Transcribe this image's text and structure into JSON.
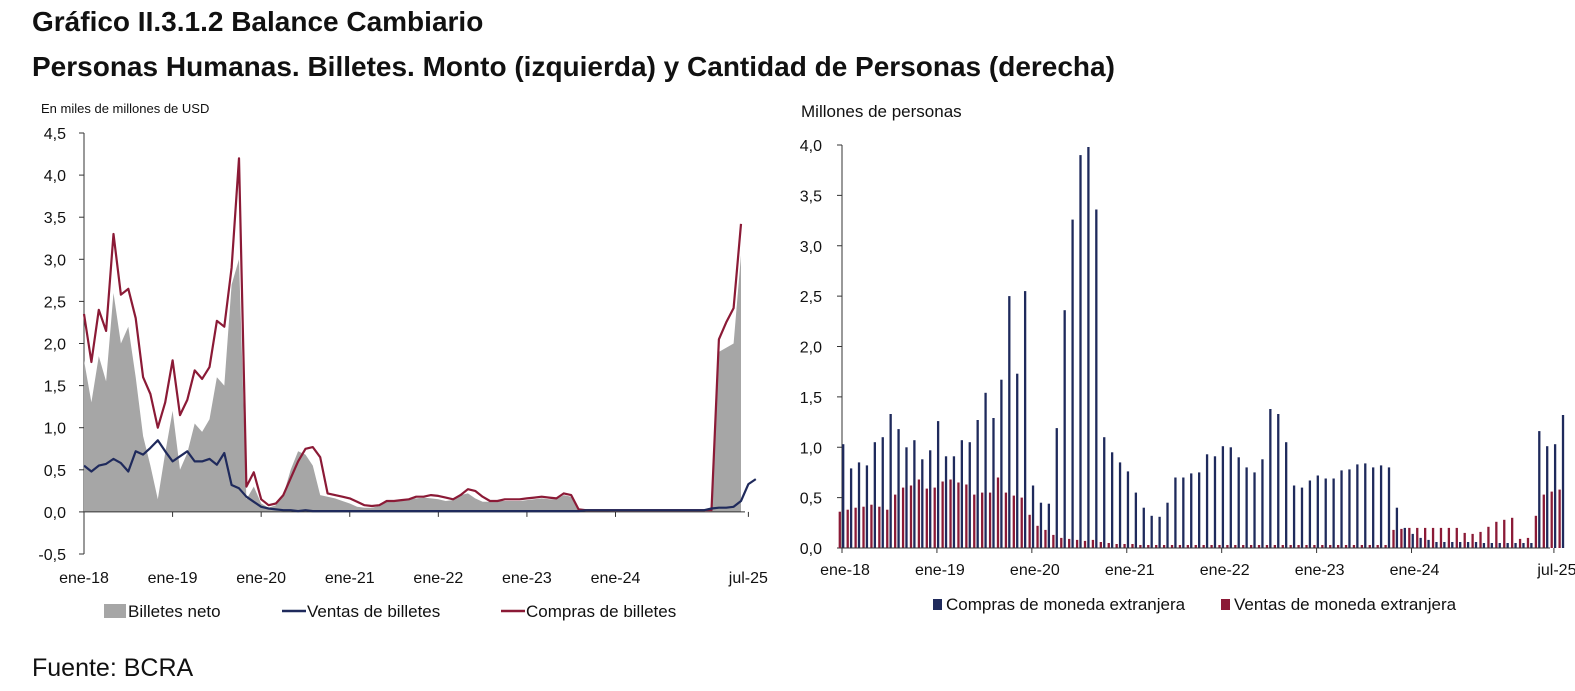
{
  "header": {
    "title": "Gráfico II.3.1.2 Balance Cambiario",
    "subtitle": "Personas Humanas. Billetes. Monto (izquierda) y Cantidad de Personas (derecha)"
  },
  "source": "Fuente: BCRA",
  "colors": {
    "neto": "#a6a6a6",
    "ventas_billetes": "#1f2a5c",
    "compras_billetes": "#8b1a36",
    "compras_moneda": "#1f2a5c",
    "ventas_moneda": "#8b1a36"
  },
  "chart_data": [
    {
      "type": "area",
      "unit_label": "En miles de millones de USD",
      "ylim": [
        -0.5,
        4.5
      ],
      "yticks": [
        "-0,5",
        "0,0",
        "0,5",
        "1,0",
        "1,5",
        "2,0",
        "2,5",
        "3,0",
        "3,5",
        "4,0",
        "4,5"
      ],
      "xtick_labels": [
        "ene-18",
        "ene-19",
        "ene-20",
        "ene-21",
        "ene-22",
        "ene-23",
        "ene-24",
        "jul-25"
      ],
      "xtick_index": [
        0,
        12,
        24,
        36,
        48,
        60,
        72,
        90
      ],
      "series": [
        {
          "name": "Billetes neto",
          "kind": "area",
          "values": [
            1.8,
            1.3,
            1.85,
            1.55,
            2.6,
            2.0,
            2.2,
            1.6,
            0.9,
            0.55,
            0.15,
            0.7,
            1.2,
            0.5,
            0.7,
            1.05,
            0.95,
            1.1,
            1.6,
            1.5,
            2.7,
            3.0,
            0.15,
            0.3,
            0.1,
            0.05,
            0.08,
            0.2,
            0.5,
            0.72,
            0.68,
            0.55,
            0.2,
            0.18,
            0.16,
            0.13,
            0.1,
            0.06,
            0.05,
            0.05,
            0.07,
            0.12,
            0.12,
            0.13,
            0.15,
            0.16,
            0.17,
            0.16,
            0.15,
            0.13,
            0.14,
            0.2,
            0.22,
            0.16,
            0.12,
            0.12,
            0.13,
            0.13,
            0.13,
            0.13,
            0.14,
            0.15,
            0.16,
            0.15,
            0.15,
            0.2,
            0.18,
            0.02,
            0.01,
            0.01,
            0.01,
            0.01,
            0.0,
            0.0,
            0.0,
            0.0,
            0.0,
            0.0,
            0.0,
            0.0,
            0.0,
            0.0,
            0.0,
            0.0,
            0.0,
            0.0,
            1.9,
            1.95,
            2.0,
            3.05
          ]
        },
        {
          "name": "Ventas de billetes",
          "kind": "line",
          "values": [
            0.55,
            0.48,
            0.55,
            0.57,
            0.63,
            0.58,
            0.48,
            0.72,
            0.68,
            0.76,
            0.85,
            0.72,
            0.6,
            0.66,
            0.72,
            0.6,
            0.6,
            0.63,
            0.56,
            0.7,
            0.32,
            0.28,
            0.18,
            0.12,
            0.06,
            0.04,
            0.03,
            0.02,
            0.02,
            0.01,
            0.02,
            0.01,
            0.01,
            0.01,
            0.01,
            0.01,
            0.01,
            0.01,
            0.01,
            0.01,
            0.01,
            0.01,
            0.01,
            0.01,
            0.01,
            0.01,
            0.01,
            0.01,
            0.01,
            0.01,
            0.01,
            0.01,
            0.01,
            0.01,
            0.01,
            0.01,
            0.01,
            0.01,
            0.01,
            0.01,
            0.01,
            0.01,
            0.01,
            0.01,
            0.01,
            0.01,
            0.01,
            0.01,
            0.02,
            0.02,
            0.02,
            0.02,
            0.02,
            0.02,
            0.02,
            0.02,
            0.02,
            0.02,
            0.02,
            0.02,
            0.02,
            0.02,
            0.02,
            0.02,
            0.02,
            0.04,
            0.05,
            0.05,
            0.06,
            0.13,
            0.33,
            0.39
          ]
        },
        {
          "name": "Compras de billetes",
          "kind": "line",
          "values": [
            2.35,
            1.78,
            2.4,
            2.15,
            3.3,
            2.58,
            2.65,
            2.3,
            1.6,
            1.4,
            1.0,
            1.3,
            1.8,
            1.15,
            1.33,
            1.68,
            1.58,
            1.72,
            2.27,
            2.2,
            2.9,
            4.2,
            0.3,
            0.47,
            0.15,
            0.08,
            0.1,
            0.2,
            0.4,
            0.6,
            0.75,
            0.77,
            0.65,
            0.22,
            0.2,
            0.18,
            0.16,
            0.12,
            0.08,
            0.07,
            0.08,
            0.13,
            0.13,
            0.14,
            0.15,
            0.18,
            0.18,
            0.2,
            0.19,
            0.17,
            0.15,
            0.2,
            0.27,
            0.25,
            0.18,
            0.13,
            0.13,
            0.15,
            0.15,
            0.15,
            0.16,
            0.17,
            0.18,
            0.17,
            0.16,
            0.22,
            0.2,
            0.03,
            0.02,
            0.02,
            0.02,
            0.02,
            0.02,
            0.02,
            0.02,
            0.02,
            0.02,
            0.02,
            0.02,
            0.02,
            0.02,
            0.02,
            0.02,
            0.02,
            0.02,
            0.02,
            2.05,
            2.25,
            2.42,
            3.42
          ]
        }
      ],
      "legend_position": "bottom"
    },
    {
      "type": "bar",
      "unit_label": "Millones de personas",
      "ylim": [
        0,
        4.0
      ],
      "yticks": [
        "0,0",
        "0,5",
        "1,0",
        "1,5",
        "2,0",
        "2,5",
        "3,0",
        "3,5",
        "4,0"
      ],
      "xtick_labels": [
        "ene-18",
        "ene-19",
        "ene-20",
        "ene-21",
        "ene-22",
        "ene-23",
        "ene-24",
        "jul-25"
      ],
      "xtick_index": [
        0,
        12,
        24,
        36,
        48,
        60,
        72,
        90
      ],
      "series": [
        {
          "name": "Compras de moneda extranjera",
          "values": [
            1.03,
            0.79,
            0.85,
            0.82,
            1.05,
            1.1,
            1.33,
            1.18,
            1.0,
            1.07,
            0.88,
            0.97,
            1.26,
            0.91,
            0.91,
            1.07,
            1.05,
            1.27,
            1.54,
            1.29,
            1.67,
            2.5,
            1.73,
            2.55,
            0.62,
            0.45,
            0.44,
            1.19,
            2.36,
            3.26,
            3.9,
            3.98,
            3.36,
            1.1,
            0.95,
            0.85,
            0.76,
            0.55,
            0.4,
            0.32,
            0.31,
            0.45,
            0.7,
            0.7,
            0.74,
            0.75,
            0.93,
            0.91,
            1.01,
            1.0,
            0.9,
            0.8,
            0.75,
            0.88,
            1.38,
            1.33,
            1.05,
            0.62,
            0.6,
            0.67,
            0.72,
            0.69,
            0.69,
            0.77,
            0.78,
            0.83,
            0.84,
            0.8,
            0.82,
            0.8,
            0.4,
            0.2,
            0.14,
            0.1,
            0.08,
            0.06,
            0.06,
            0.06,
            0.06,
            0.06,
            0.06,
            0.05,
            0.05,
            0.05,
            0.05,
            0.05,
            0.05,
            0.05,
            1.16,
            1.01,
            1.03,
            1.32
          ]
        },
        {
          "name": "Ventas de moneda extranjera",
          "values": [
            0.36,
            0.38,
            0.4,
            0.41,
            0.43,
            0.41,
            0.38,
            0.53,
            0.6,
            0.62,
            0.68,
            0.59,
            0.6,
            0.66,
            0.68,
            0.65,
            0.63,
            0.53,
            0.55,
            0.55,
            0.7,
            0.55,
            0.52,
            0.5,
            0.33,
            0.22,
            0.18,
            0.13,
            0.1,
            0.09,
            0.08,
            0.07,
            0.08,
            0.06,
            0.05,
            0.04,
            0.04,
            0.04,
            0.03,
            0.03,
            0.03,
            0.03,
            0.03,
            0.03,
            0.03,
            0.03,
            0.03,
            0.03,
            0.03,
            0.03,
            0.03,
            0.03,
            0.03,
            0.03,
            0.03,
            0.03,
            0.03,
            0.03,
            0.03,
            0.03,
            0.03,
            0.03,
            0.03,
            0.03,
            0.03,
            0.03,
            0.03,
            0.03,
            0.03,
            0.03,
            0.18,
            0.19,
            0.2,
            0.2,
            0.2,
            0.2,
            0.2,
            0.2,
            0.2,
            0.15,
            0.14,
            0.16,
            0.21,
            0.26,
            0.28,
            0.3,
            0.09,
            0.1,
            0.32,
            0.53,
            0.56,
            0.58
          ]
        }
      ],
      "legend_position": "bottom"
    }
  ]
}
